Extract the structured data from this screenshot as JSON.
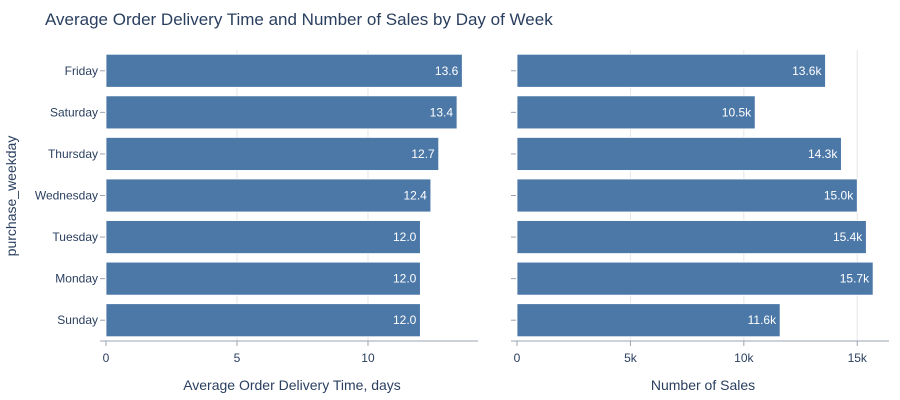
{
  "title": "Average Order Delivery Time and Number of Sales by Day of Week",
  "y_axis_title": "purchase_weekday",
  "colors": {
    "bar": "#4c78a8",
    "bar_edge": "#ffffff"
  },
  "chart_data": [
    {
      "type": "bar",
      "orientation": "horizontal",
      "categories": [
        "Friday",
        "Saturday",
        "Thursday",
        "Wednesday",
        "Tuesday",
        "Monday",
        "Sunday"
      ],
      "values": [
        13.6,
        13.4,
        12.7,
        12.4,
        12.0,
        12.0,
        12.0
      ],
      "data_labels": [
        "13.6",
        "13.4",
        "12.7",
        "12.4",
        "12.0",
        "12.0",
        "12.0"
      ],
      "xlabel": "Average Order Delivery Time, days",
      "xlim": [
        0,
        14.2
      ],
      "xticks": [
        0,
        5,
        10
      ],
      "xtick_labels": [
        "0",
        "5",
        "10"
      ],
      "grid": true
    },
    {
      "type": "bar",
      "orientation": "horizontal",
      "categories": [
        "Friday",
        "Saturday",
        "Thursday",
        "Wednesday",
        "Tuesday",
        "Monday",
        "Sunday"
      ],
      "values": [
        13600,
        10500,
        14300,
        15000,
        15400,
        15700,
        11600
      ],
      "data_labels": [
        "13.6k",
        "10.5k",
        "14.3k",
        "15.0k",
        "15.4k",
        "15.7k",
        "11.6k"
      ],
      "xlabel": "Number of Sales",
      "xlim": [
        0,
        16400
      ],
      "xticks": [
        0,
        5000,
        10000,
        15000
      ],
      "xtick_labels": [
        "0",
        "5k",
        "10k",
        "15k"
      ],
      "grid": true
    }
  ]
}
